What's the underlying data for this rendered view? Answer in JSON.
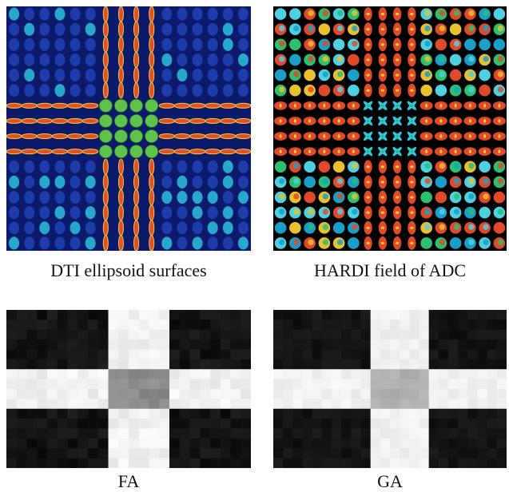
{
  "figure": {
    "panels": [
      {
        "id": "dti",
        "caption": "DTI ellipsoid surfaces",
        "grid": 16
      },
      {
        "id": "hardi",
        "caption": "HARDI field of ADC",
        "grid": 16
      },
      {
        "id": "fa",
        "caption": "FA",
        "grid": 16
      },
      {
        "id": "ga",
        "caption": "GA",
        "grid": 16
      }
    ],
    "colors": {
      "background_glyph": "#1f3fb0",
      "background_glyph_highlight": "#2bb7d8",
      "fiber_glyph": "#e0502a",
      "fiber_glyph_highlight": "#f2c83a",
      "crossing_glyph": "#5fc24a",
      "map_dark": "#141414",
      "map_bright": "#f1f1f1",
      "map_crossing_fa": "#8a8a8a",
      "map_crossing_ga": "#b0b0b0"
    }
  }
}
